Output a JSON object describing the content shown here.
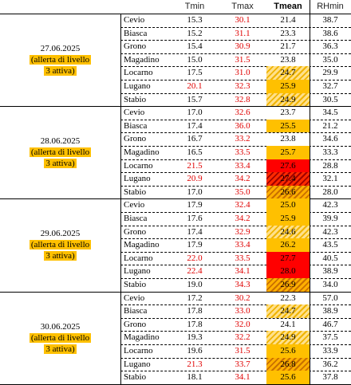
{
  "headers": {
    "tmin": "Tmin",
    "tmax": "Tmax",
    "tmean": "Tmean",
    "rhmin": "RHmin"
  },
  "days": [
    {
      "date": "27.06.2025",
      "note1": "(allerta di livello",
      "note2": "3 attiva)",
      "rows": [
        {
          "station": "Cevio",
          "tmin": "15.3",
          "tmax": "30.1",
          "tmean": "21.4",
          "rhmin": "38.7",
          "tmin_red": false,
          "tmax_red": true,
          "fill": "none"
        },
        {
          "station": "Biasca",
          "tmin": "15.2",
          "tmax": "31.1",
          "tmean": "23.3",
          "rhmin": "38.6",
          "tmin_red": false,
          "tmax_red": true,
          "fill": "none"
        },
        {
          "station": "Grono",
          "tmin": "15.4",
          "tmax": "30.9",
          "tmean": "21.7",
          "rhmin": "36.3",
          "tmin_red": false,
          "tmax_red": true,
          "fill": "none"
        },
        {
          "station": "Magadino",
          "tmin": "15.0",
          "tmax": "31.5",
          "tmean": "23.8",
          "rhmin": "35.0",
          "tmin_red": false,
          "tmax_red": true,
          "fill": "none"
        },
        {
          "station": "Locarno",
          "tmin": "17.5",
          "tmax": "31.0",
          "tmean": "24.7",
          "rhmin": "29.9",
          "tmin_red": false,
          "tmax_red": true,
          "fill": "hatch-yellow"
        },
        {
          "station": "Lugano",
          "tmin": "20.1",
          "tmax": "32.3",
          "tmean": "25.9",
          "rhmin": "32.7",
          "tmin_red": true,
          "tmax_red": true,
          "fill": "orange"
        },
        {
          "station": "Stabio",
          "tmin": "15.7",
          "tmax": "32.8",
          "tmean": "24.9",
          "rhmin": "30.5",
          "tmin_red": false,
          "tmax_red": true,
          "fill": "hatch-yellow"
        }
      ]
    },
    {
      "date": "28.06.2025",
      "note1": "(allerta di livello",
      "note2": "3 attiva)",
      "rows": [
        {
          "station": "Cevio",
          "tmin": "17.0",
          "tmax": "32.6",
          "tmean": "23.7",
          "rhmin": "34.5",
          "tmin_red": false,
          "tmax_red": true,
          "fill": "none"
        },
        {
          "station": "Biasca",
          "tmin": "17.4",
          "tmax": "36.0",
          "tmean": "25.5",
          "rhmin": "21.2",
          "tmin_red": false,
          "tmax_red": true,
          "fill": "orange"
        },
        {
          "station": "Grono",
          "tmin": "16.7",
          "tmax": "33.2",
          "tmean": "23.8",
          "rhmin": "34.6",
          "tmin_red": false,
          "tmax_red": true,
          "fill": "none"
        },
        {
          "station": "Magadino",
          "tmin": "16.5",
          "tmax": "33.5",
          "tmean": "25.7",
          "rhmin": "33.3",
          "tmin_red": false,
          "tmax_red": true,
          "fill": "orange"
        },
        {
          "station": "Locarno",
          "tmin": "21.5",
          "tmax": "33.4",
          "tmean": "27.6",
          "rhmin": "28.8",
          "tmin_red": true,
          "tmax_red": true,
          "fill": "red"
        },
        {
          "station": "Lugano",
          "tmin": "20.9",
          "tmax": "34.2",
          "tmean": "27.4",
          "rhmin": "32.1",
          "tmin_red": true,
          "tmax_red": true,
          "fill": "hatch-red"
        },
        {
          "station": "Stabio",
          "tmin": "17.0",
          "tmax": "35.0",
          "tmean": "26.6",
          "rhmin": "28.0",
          "tmin_red": false,
          "tmax_red": true,
          "fill": "hatch-orange"
        }
      ]
    },
    {
      "date": "29.06.2025",
      "note1": "(allerta di livello",
      "note2": "3 attiva)",
      "rows": [
        {
          "station": "Cevio",
          "tmin": "17.9",
          "tmax": "32.4",
          "tmean": "25.0",
          "rhmin": "42.3",
          "tmin_red": false,
          "tmax_red": true,
          "fill": "orange"
        },
        {
          "station": "Biasca",
          "tmin": "17.6",
          "tmax": "34.2",
          "tmean": "25.9",
          "rhmin": "39.9",
          "tmin_red": false,
          "tmax_red": true,
          "fill": "orange"
        },
        {
          "station": "Grono",
          "tmin": "17.4",
          "tmax": "32.9",
          "tmean": "24.6",
          "rhmin": "42.3",
          "tmin_red": false,
          "tmax_red": true,
          "fill": "hatch-yellow"
        },
        {
          "station": "Magadino",
          "tmin": "17.9",
          "tmax": "33.4",
          "tmean": "26.2",
          "rhmin": "43.5",
          "tmin_red": false,
          "tmax_red": true,
          "fill": "orange"
        },
        {
          "station": "Locarno",
          "tmin": "22.0",
          "tmax": "33.5",
          "tmean": "27.7",
          "rhmin": "40.5",
          "tmin_red": true,
          "tmax_red": true,
          "fill": "red"
        },
        {
          "station": "Lugano",
          "tmin": "22.4",
          "tmax": "34.1",
          "tmean": "28.0",
          "rhmin": "38.9",
          "tmin_red": true,
          "tmax_red": true,
          "fill": "red"
        },
        {
          "station": "Stabio",
          "tmin": "19.0",
          "tmax": "34.3",
          "tmean": "26.9",
          "rhmin": "34.0",
          "tmin_red": false,
          "tmax_red": true,
          "fill": "hatch-orange"
        }
      ]
    },
    {
      "date": "30.06.2025",
      "note1": "(allerta di livello",
      "note2": "3 attiva)",
      "rows": [
        {
          "station": "Cevio",
          "tmin": "17.2",
          "tmax": "30.2",
          "tmean": "22.3",
          "rhmin": "57.0",
          "tmin_red": false,
          "tmax_red": true,
          "fill": "none"
        },
        {
          "station": "Biasca",
          "tmin": "17.8",
          "tmax": "33.0",
          "tmean": "24.7",
          "rhmin": "38.9",
          "tmin_red": false,
          "tmax_red": true,
          "fill": "hatch-yellow"
        },
        {
          "station": "Grono",
          "tmin": "17.8",
          "tmax": "32.0",
          "tmean": "24.1",
          "rhmin": "46.7",
          "tmin_red": false,
          "tmax_red": true,
          "fill": "none"
        },
        {
          "station": "Magadino",
          "tmin": "19.3",
          "tmax": "32.2",
          "tmean": "24.9",
          "rhmin": "37.5",
          "tmin_red": false,
          "tmax_red": true,
          "fill": "hatch-yellow"
        },
        {
          "station": "Locarno",
          "tmin": "19.6",
          "tmax": "31.5",
          "tmean": "25.6",
          "rhmin": "33.9",
          "tmin_red": false,
          "tmax_red": true,
          "fill": "orange"
        },
        {
          "station": "Lugano",
          "tmin": "21.3",
          "tmax": "33.7",
          "tmean": "26.8",
          "rhmin": "36.2",
          "tmin_red": true,
          "tmax_red": true,
          "fill": "hatch-orange"
        },
        {
          "station": "Stabio",
          "tmin": "18.1",
          "tmax": "34.1",
          "tmean": "25.6",
          "rhmin": "37.8",
          "tmin_red": false,
          "tmax_red": true,
          "fill": "orange"
        }
      ]
    }
  ],
  "colors": {
    "alert_highlight": "#ffc000",
    "red_text": "#e00000",
    "orange_fill": "#ffc000",
    "red_fill": "#ff0000"
  }
}
